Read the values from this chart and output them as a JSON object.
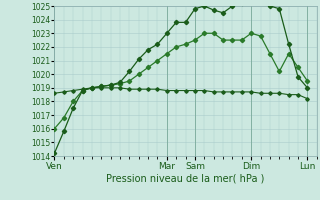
{
  "xlabel": "Pression niveau de la mer( hPa )",
  "background_color": "#cce8e0",
  "grid_color": "#aacccc",
  "line_color_dark": "#1a5c1a",
  "line_color_mid": "#2a7a2a",
  "line_color_flat": "#1a5c1a",
  "ylim": [
    1014,
    1025
  ],
  "ytick_labels": [
    "1014",
    "1015",
    "1016",
    "1017",
    "1018",
    "1019",
    "1020",
    "1021",
    "1022",
    "1023",
    "1024",
    "1025"
  ],
  "xtick_labels": [
    "Ven",
    "Mar",
    "Sam",
    "Dim",
    "Lun"
  ],
  "xtick_pos": [
    0,
    12,
    15,
    21,
    27
  ],
  "xmax": 28,
  "series1_x": [
    0,
    1,
    2,
    3,
    4,
    5,
    6,
    7,
    8,
    9,
    10,
    11,
    12,
    13,
    14,
    15,
    16,
    17,
    18,
    19,
    20,
    21,
    22,
    23,
    24,
    25,
    26,
    27
  ],
  "series1_y": [
    1014.2,
    1015.8,
    1017.5,
    1018.8,
    1019.0,
    1019.1,
    1019.2,
    1019.4,
    1020.2,
    1021.1,
    1021.8,
    1022.2,
    1023.0,
    1023.8,
    1023.8,
    1024.8,
    1025.0,
    1024.7,
    1024.5,
    1025.0,
    1025.2,
    1025.6,
    1025.8,
    1025.0,
    1024.8,
    1022.2,
    1019.8,
    1019.0
  ],
  "series2_x": [
    0,
    1,
    2,
    3,
    4,
    5,
    6,
    7,
    8,
    9,
    10,
    11,
    12,
    13,
    14,
    15,
    16,
    17,
    18,
    19,
    20,
    21,
    22,
    23,
    24,
    25,
    26,
    27
  ],
  "series2_y": [
    1016.0,
    1016.8,
    1018.0,
    1018.8,
    1019.0,
    1019.1,
    1019.2,
    1019.3,
    1019.5,
    1020.0,
    1020.5,
    1021.0,
    1021.5,
    1022.0,
    1022.2,
    1022.5,
    1023.0,
    1023.0,
    1022.5,
    1022.5,
    1022.5,
    1023.0,
    1022.8,
    1021.5,
    1020.2,
    1021.5,
    1020.5,
    1019.5
  ],
  "series3_x": [
    0,
    1,
    2,
    3,
    4,
    5,
    6,
    7,
    8,
    9,
    10,
    11,
    12,
    13,
    14,
    15,
    16,
    17,
    18,
    19,
    20,
    21,
    22,
    23,
    24,
    25,
    26,
    27
  ],
  "series3_y": [
    1018.6,
    1018.7,
    1018.8,
    1018.9,
    1019.0,
    1019.0,
    1019.0,
    1019.0,
    1018.9,
    1018.9,
    1018.9,
    1018.9,
    1018.8,
    1018.8,
    1018.8,
    1018.8,
    1018.8,
    1018.7,
    1018.7,
    1018.7,
    1018.7,
    1018.7,
    1018.6,
    1018.6,
    1018.6,
    1018.5,
    1018.5,
    1018.2
  ]
}
